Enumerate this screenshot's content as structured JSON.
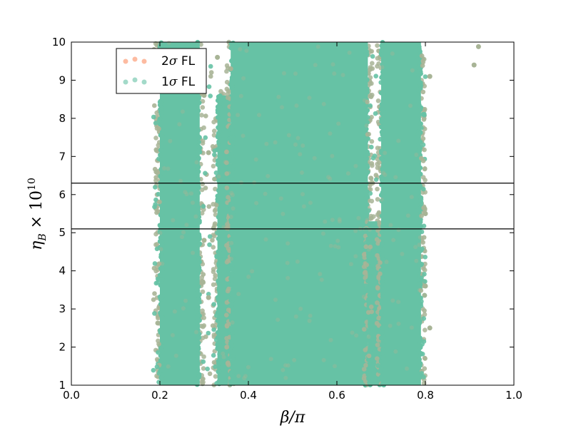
{
  "chart_data": {
    "type": "scatter",
    "title": "",
    "xlabel": "β/π",
    "ylabel": "η_B × 10^10",
    "ylabel_parts": {
      "main": "η",
      "sub": "B",
      "times": " × 10",
      "sup": "10"
    },
    "xlim": [
      0.0,
      1.0
    ],
    "ylim": [
      1,
      10
    ],
    "x_ticks": [
      "0.0",
      "0.2",
      "0.4",
      "0.6",
      "0.8",
      "1.0"
    ],
    "y_ticks": [
      "1",
      "2",
      "3",
      "4",
      "5",
      "6",
      "7",
      "8",
      "9",
      "10"
    ],
    "grid": false,
    "legend_position": "top-left",
    "series": [
      {
        "name": "2σ FL",
        "label_main": "2",
        "label_sigma": "σ",
        "label_suffix": " FL",
        "color": "#fc8d62",
        "point_color": "#a8b496"
      },
      {
        "name": "1σ FL",
        "label_main": "1",
        "label_sigma": "σ",
        "label_suffix": " FL",
        "color": "#66c2a5"
      }
    ],
    "dense_regions": [
      {
        "x_range": [
          0.2,
          0.29
        ],
        "y_range": [
          1,
          10
        ]
      },
      {
        "x_range": [
          0.33,
          0.36
        ],
        "y_range": [
          1,
          8.6
        ]
      },
      {
        "x_range": [
          0.36,
          0.67
        ],
        "y_range": [
          1,
          10
        ]
      },
      {
        "x_range": [
          0.67,
          0.7
        ],
        "y_range": [
          1,
          5.3
        ]
      },
      {
        "x_range": [
          0.7,
          0.79
        ],
        "y_range": [
          1,
          10
        ]
      }
    ],
    "outliers": [
      {
        "x": 0.91,
        "y": 9.4
      },
      {
        "x": 0.92,
        "y": 9.88
      },
      {
        "x": 0.81,
        "y": 9.1
      },
      {
        "x": 0.8,
        "y": 5.5
      },
      {
        "x": 0.8,
        "y": 3.6
      },
      {
        "x": 0.81,
        "y": 2.5
      },
      {
        "x": 0.3,
        "y": 4.8
      },
      {
        "x": 0.31,
        "y": 3.3
      },
      {
        "x": 0.31,
        "y": 7.1
      },
      {
        "x": 0.3,
        "y": 8.6
      },
      {
        "x": 0.36,
        "y": 9.3
      },
      {
        "x": 0.33,
        "y": 9.6
      }
    ],
    "reference_lines": [
      {
        "y": 6.3
      },
      {
        "y": 5.1
      }
    ]
  }
}
